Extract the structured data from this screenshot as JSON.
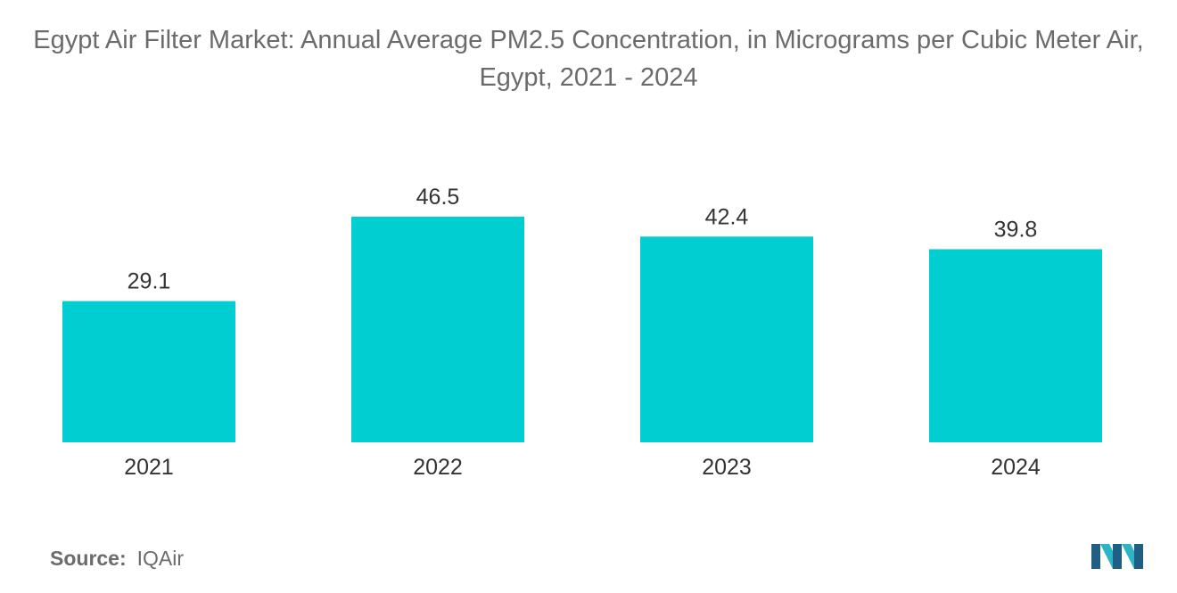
{
  "title": "Egypt Air Filter Market: Annual Average PM2.5 Concentration, in Micrograms per Cubic Meter Air, Egypt, 2021 - 2024",
  "source": {
    "label": "Source:",
    "value": "IQAir"
  },
  "colors": {
    "bar": "#00CED1",
    "text": "#333333",
    "title": "#6b6b6b",
    "logo_dark": "#1f5f86",
    "logo_light": "#2bb3c6"
  },
  "chart_data": {
    "type": "bar",
    "title": "Egypt Air Filter Market: Annual Average PM2.5 Concentration, in Micrograms per Cubic Meter Air, Egypt, 2021 - 2024",
    "categories": [
      "2021",
      "2022",
      "2023",
      "2024"
    ],
    "values": [
      29.1,
      46.5,
      42.4,
      39.8
    ],
    "value_labels": [
      "29.1",
      "46.5",
      "42.4",
      "39.8"
    ],
    "xlabel": "",
    "ylabel": "",
    "ylim": [
      0,
      50
    ],
    "grid": false,
    "legend": "none"
  }
}
